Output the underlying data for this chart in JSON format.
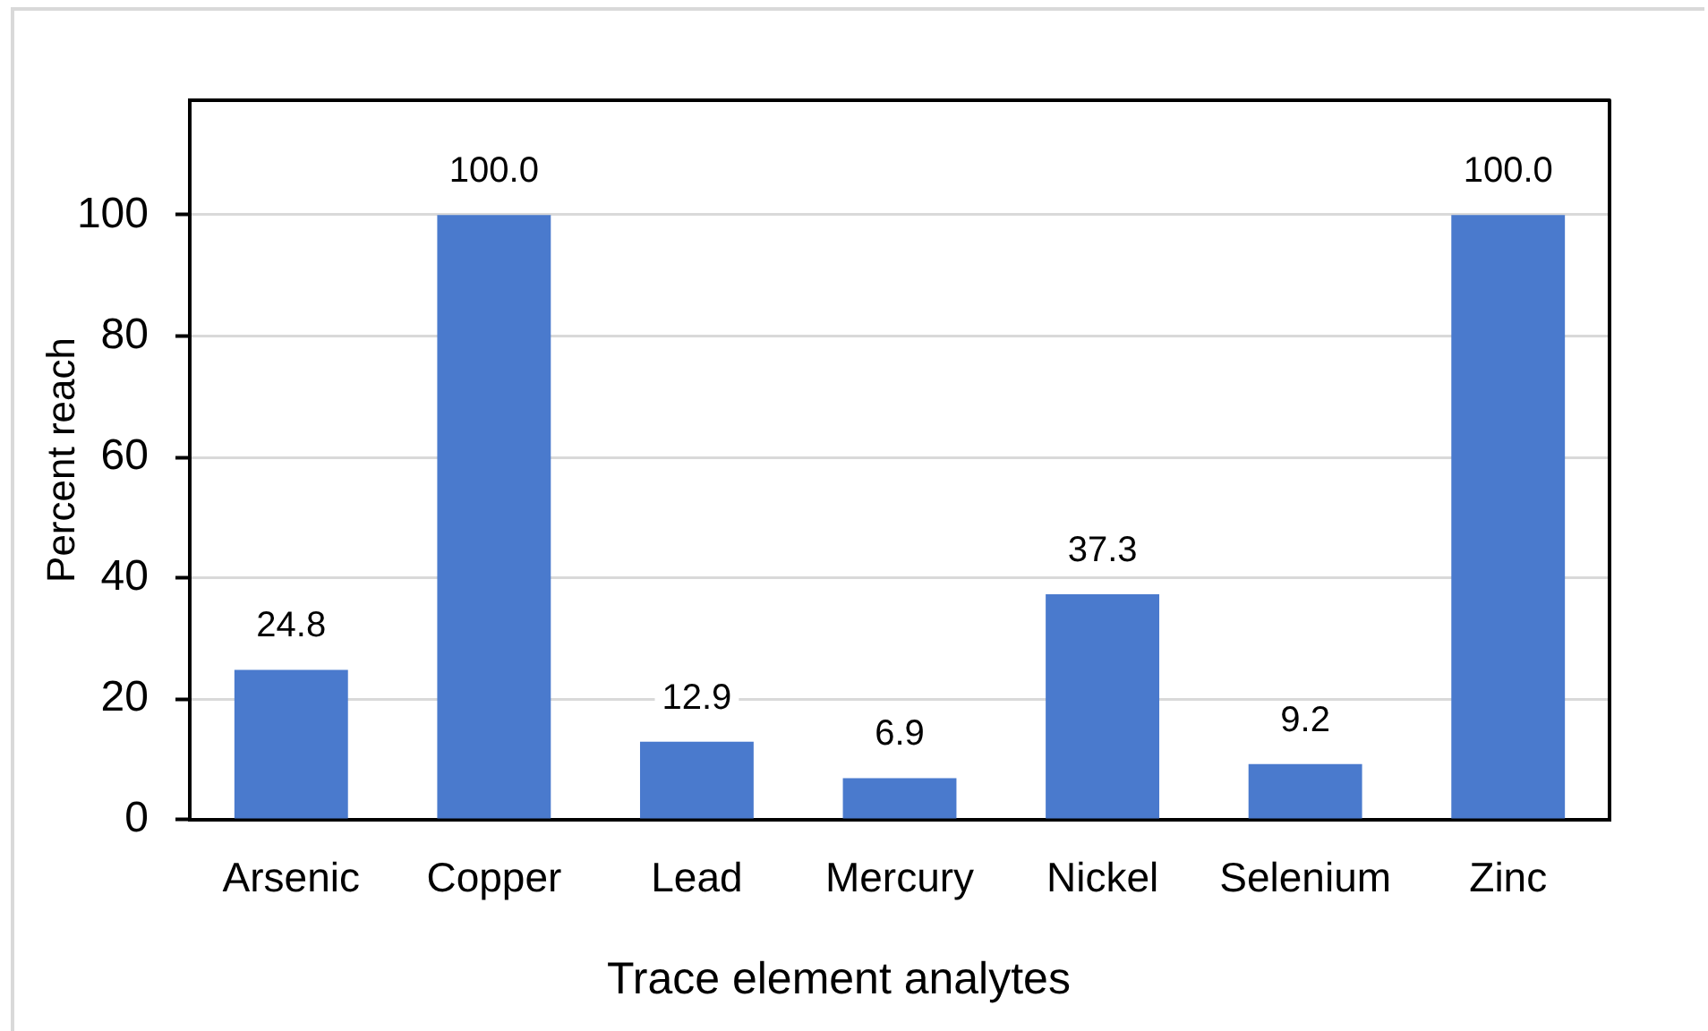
{
  "chart_data": {
    "type": "bar",
    "xlabel": "Trace element analytes",
    "ylabel": "Percent reach",
    "categories": [
      "Arsenic",
      "Copper",
      "Lead",
      "Mercury",
      "Nickel",
      "Selenium",
      "Zinc"
    ],
    "values": [
      24.8,
      100.0,
      12.9,
      6.9,
      37.3,
      9.2,
      100.0
    ],
    "color": "#4a7acd",
    "value_labels": [
      "24.8",
      "100.0",
      "12.9",
      "6.9",
      "37.3",
      "9.2",
      "100.0"
    ],
    "ylim": [
      0,
      119
    ],
    "yticks": [
      0,
      20,
      40,
      60,
      80,
      100
    ],
    "grid": "y"
  }
}
